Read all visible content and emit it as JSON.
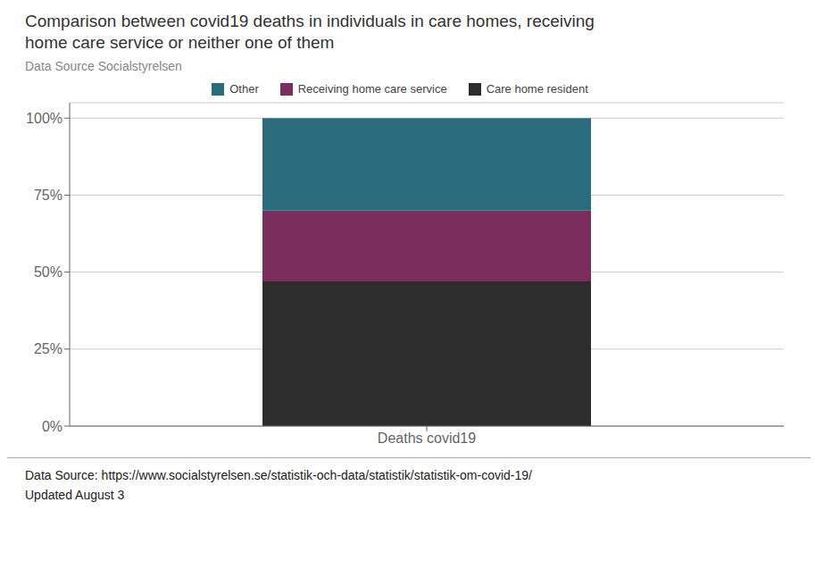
{
  "chart_data": {
    "type": "bar",
    "title": "Comparison between covid19 deaths in individuals in care homes, receiving\nhome care service or neither one of them",
    "subtitle": "Data Source Socialstyrelsen",
    "categories": [
      "Deaths covid19"
    ],
    "series": [
      {
        "name": "Care home resident",
        "color": "#2d2d2d",
        "values": [
          47
        ]
      },
      {
        "name": "Receiving home care service",
        "color": "#7b2d5e",
        "values": [
          23
        ]
      },
      {
        "name": "Other",
        "color": "#2a6b7c",
        "values": [
          30
        ]
      }
    ],
    "stacked": true,
    "ylim": [
      0,
      105
    ],
    "yticks": [
      {
        "value": 0,
        "label": "0%"
      },
      {
        "value": 25,
        "label": "25%"
      },
      {
        "value": 50,
        "label": "50%"
      },
      {
        "value": 75,
        "label": "75%"
      },
      {
        "value": 100,
        "label": "100%"
      }
    ],
    "grid": true,
    "legend": "top",
    "annotations": [
      "Data Source: https://www.socialstyrelsen.se/statistik-och-data/statistik/statistik-om-covid-19/",
      "Updated August 3"
    ]
  }
}
